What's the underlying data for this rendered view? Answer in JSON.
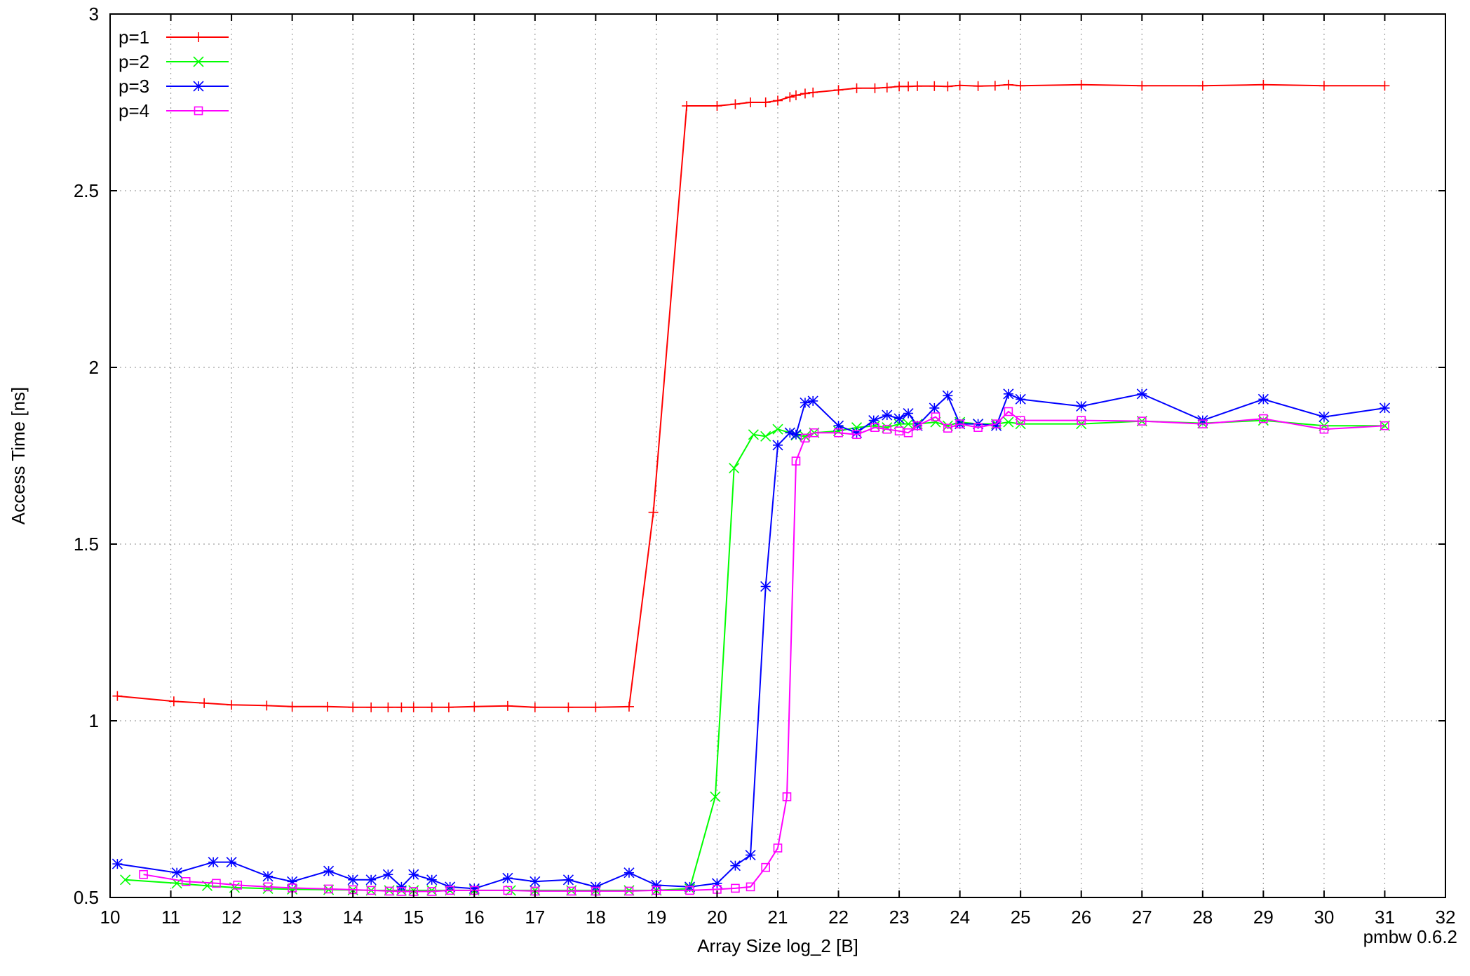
{
  "chart_data": {
    "type": "line",
    "xlabel": "Array Size log_2 [B]",
    "ylabel": "Access Time [ns]",
    "footer": "pmbw 0.6.2",
    "xlim": [
      10,
      32
    ],
    "ylim": [
      0.5,
      3
    ],
    "xticks": [
      10,
      11,
      12,
      13,
      14,
      15,
      16,
      17,
      18,
      19,
      20,
      21,
      22,
      23,
      24,
      25,
      26,
      27,
      28,
      29,
      30,
      31,
      32
    ],
    "yticks": [
      0.5,
      1,
      1.5,
      2,
      2.5,
      3
    ],
    "ytick_labels": [
      "0.5",
      "1",
      "1.5",
      "2",
      "2.5",
      "3"
    ],
    "grid": true,
    "legend_position": "top-left",
    "series": [
      {
        "name": "p=1",
        "color": "#ff0000",
        "marker": "plus",
        "points": [
          [
            10.12,
            1.07
          ],
          [
            11.05,
            1.055
          ],
          [
            11.55,
            1.05
          ],
          [
            12.0,
            1.045
          ],
          [
            12.58,
            1.043
          ],
          [
            13.0,
            1.04
          ],
          [
            13.58,
            1.04
          ],
          [
            14.0,
            1.038
          ],
          [
            14.3,
            1.038
          ],
          [
            14.58,
            1.038
          ],
          [
            14.8,
            1.038
          ],
          [
            15.0,
            1.038
          ],
          [
            15.3,
            1.038
          ],
          [
            15.58,
            1.038
          ],
          [
            16.0,
            1.04
          ],
          [
            16.55,
            1.042
          ],
          [
            17.0,
            1.038
          ],
          [
            17.55,
            1.038
          ],
          [
            18.0,
            1.038
          ],
          [
            18.55,
            1.04
          ],
          [
            18.95,
            1.59
          ],
          [
            19.5,
            2.74
          ],
          [
            20.0,
            2.74
          ],
          [
            20.3,
            2.745
          ],
          [
            20.55,
            2.75
          ],
          [
            20.8,
            2.75
          ],
          [
            21.0,
            2.755
          ],
          [
            21.2,
            2.765
          ],
          [
            21.3,
            2.77
          ],
          [
            21.45,
            2.775
          ],
          [
            21.58,
            2.778
          ],
          [
            22.0,
            2.785
          ],
          [
            22.3,
            2.79
          ],
          [
            22.6,
            2.79
          ],
          [
            22.8,
            2.792
          ],
          [
            23.0,
            2.795
          ],
          [
            23.15,
            2.795
          ],
          [
            23.3,
            2.796
          ],
          [
            23.58,
            2.796
          ],
          [
            23.8,
            2.795
          ],
          [
            24.0,
            2.798
          ],
          [
            24.3,
            2.796
          ],
          [
            24.58,
            2.797
          ],
          [
            24.8,
            2.8
          ],
          [
            25.0,
            2.797
          ],
          [
            26.0,
            2.8
          ],
          [
            27.0,
            2.797
          ],
          [
            28.0,
            2.797
          ],
          [
            29.0,
            2.8
          ],
          [
            30.0,
            2.797
          ],
          [
            31.0,
            2.797
          ]
        ]
      },
      {
        "name": "p=2",
        "color": "#00ff00",
        "marker": "cross",
        "points": [
          [
            10.25,
            0.55
          ],
          [
            11.1,
            0.54
          ],
          [
            11.6,
            0.533
          ],
          [
            12.05,
            0.528
          ],
          [
            12.6,
            0.525
          ],
          [
            13.0,
            0.523
          ],
          [
            13.6,
            0.522
          ],
          [
            14.0,
            0.521
          ],
          [
            14.3,
            0.52
          ],
          [
            14.6,
            0.52
          ],
          [
            14.8,
            0.52
          ],
          [
            15.0,
            0.52
          ],
          [
            15.3,
            0.52
          ],
          [
            15.6,
            0.52
          ],
          [
            16.0,
            0.52
          ],
          [
            16.6,
            0.52
          ],
          [
            17.0,
            0.52
          ],
          [
            17.6,
            0.52
          ],
          [
            18.0,
            0.52
          ],
          [
            18.55,
            0.52
          ],
          [
            19.0,
            0.52
          ],
          [
            19.55,
            0.525
          ],
          [
            19.97,
            0.785
          ],
          [
            20.28,
            1.715
          ],
          [
            20.6,
            1.81
          ],
          [
            20.8,
            1.805
          ],
          [
            21.0,
            1.825
          ],
          [
            21.2,
            1.815
          ],
          [
            21.3,
            1.808
          ],
          [
            21.45,
            1.805
          ],
          [
            21.6,
            1.815
          ],
          [
            22.0,
            1.82
          ],
          [
            22.3,
            1.83
          ],
          [
            22.6,
            1.835
          ],
          [
            22.8,
            1.83
          ],
          [
            23.0,
            1.84
          ],
          [
            23.15,
            1.84
          ],
          [
            23.3,
            1.84
          ],
          [
            23.6,
            1.845
          ],
          [
            23.8,
            1.835
          ],
          [
            24.0,
            1.845
          ],
          [
            24.3,
            1.84
          ],
          [
            24.6,
            1.84
          ],
          [
            24.8,
            1.845
          ],
          [
            25.0,
            1.84
          ],
          [
            26.0,
            1.84
          ],
          [
            27.0,
            1.848
          ],
          [
            28.0,
            1.842
          ],
          [
            29.0,
            1.85
          ],
          [
            30.0,
            1.835
          ],
          [
            31.0,
            1.835
          ]
        ]
      },
      {
        "name": "p=3",
        "color": "#0000ff",
        "marker": "star",
        "points": [
          [
            10.12,
            0.595
          ],
          [
            11.1,
            0.57
          ],
          [
            11.7,
            0.6
          ],
          [
            12.0,
            0.6
          ],
          [
            12.6,
            0.56
          ],
          [
            13.0,
            0.545
          ],
          [
            13.6,
            0.575
          ],
          [
            14.0,
            0.55
          ],
          [
            14.3,
            0.55
          ],
          [
            14.58,
            0.565
          ],
          [
            14.8,
            0.53
          ],
          [
            15.0,
            0.565
          ],
          [
            15.3,
            0.55
          ],
          [
            15.6,
            0.53
          ],
          [
            16.0,
            0.525
          ],
          [
            16.55,
            0.555
          ],
          [
            17.0,
            0.545
          ],
          [
            17.55,
            0.55
          ],
          [
            18.0,
            0.53
          ],
          [
            18.55,
            0.57
          ],
          [
            19.0,
            0.535
          ],
          [
            19.55,
            0.53
          ],
          [
            20.0,
            0.54
          ],
          [
            20.3,
            0.59
          ],
          [
            20.55,
            0.62
          ],
          [
            20.8,
            1.38
          ],
          [
            21.0,
            1.78
          ],
          [
            21.2,
            1.815
          ],
          [
            21.3,
            1.81
          ],
          [
            21.45,
            1.9
          ],
          [
            21.58,
            1.905
          ],
          [
            22.0,
            1.835
          ],
          [
            22.3,
            1.815
          ],
          [
            22.58,
            1.85
          ],
          [
            22.8,
            1.865
          ],
          [
            23.0,
            1.855
          ],
          [
            23.15,
            1.87
          ],
          [
            23.3,
            1.835
          ],
          [
            23.58,
            1.885
          ],
          [
            23.8,
            1.92
          ],
          [
            24.0,
            1.84
          ],
          [
            24.3,
            1.84
          ],
          [
            24.6,
            1.835
          ],
          [
            24.8,
            1.925
          ],
          [
            25.0,
            1.91
          ],
          [
            26.0,
            1.89
          ],
          [
            27.0,
            1.925
          ],
          [
            28.0,
            1.85
          ],
          [
            29.0,
            1.91
          ],
          [
            30.0,
            1.86
          ],
          [
            31.0,
            1.885
          ]
        ]
      },
      {
        "name": "p=4",
        "color": "#ff00ff",
        "marker": "square",
        "points": [
          [
            10.55,
            0.565
          ],
          [
            11.25,
            0.545
          ],
          [
            11.75,
            0.54
          ],
          [
            12.1,
            0.535
          ],
          [
            12.6,
            0.53
          ],
          [
            13.0,
            0.527
          ],
          [
            13.6,
            0.524
          ],
          [
            14.0,
            0.522
          ],
          [
            14.3,
            0.52
          ],
          [
            14.6,
            0.518
          ],
          [
            14.8,
            0.517
          ],
          [
            15.0,
            0.517
          ],
          [
            15.3,
            0.517
          ],
          [
            15.6,
            0.52
          ],
          [
            16.0,
            0.52
          ],
          [
            16.55,
            0.52
          ],
          [
            17.0,
            0.518
          ],
          [
            17.6,
            0.518
          ],
          [
            18.0,
            0.518
          ],
          [
            18.55,
            0.518
          ],
          [
            19.0,
            0.52
          ],
          [
            19.55,
            0.52
          ],
          [
            20.0,
            0.523
          ],
          [
            20.3,
            0.526
          ],
          [
            20.55,
            0.53
          ],
          [
            20.8,
            0.585
          ],
          [
            21.0,
            0.64
          ],
          [
            21.15,
            0.785
          ],
          [
            21.3,
            1.735
          ],
          [
            21.45,
            1.8
          ],
          [
            21.6,
            1.815
          ],
          [
            22.0,
            1.815
          ],
          [
            22.3,
            1.81
          ],
          [
            22.6,
            1.83
          ],
          [
            22.8,
            1.825
          ],
          [
            23.0,
            1.82
          ],
          [
            23.15,
            1.815
          ],
          [
            23.3,
            1.835
          ],
          [
            23.6,
            1.86
          ],
          [
            23.8,
            1.828
          ],
          [
            24.0,
            1.84
          ],
          [
            24.3,
            1.83
          ],
          [
            24.6,
            1.84
          ],
          [
            24.8,
            1.875
          ],
          [
            25.0,
            1.85
          ],
          [
            26.0,
            1.85
          ],
          [
            27.0,
            1.848
          ],
          [
            28.0,
            1.84
          ],
          [
            29.0,
            1.855
          ],
          [
            30.0,
            1.825
          ],
          [
            31.0,
            1.835
          ]
        ]
      }
    ]
  }
}
